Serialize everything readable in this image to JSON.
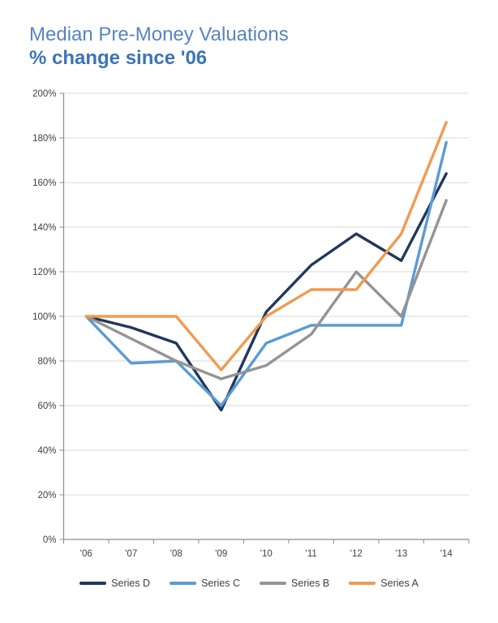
{
  "header": {
    "title": "Median Pre-Money Valuations",
    "subtitle": "% change since '06"
  },
  "chart_data": {
    "type": "line",
    "title": "Median Pre-Money Valuations",
    "subtitle": "% change since '06",
    "categories": [
      "'06",
      "'07",
      "'08",
      "'09",
      "'10",
      "'11",
      "'12",
      "'13",
      "'14"
    ],
    "series": [
      {
        "name": "Series D",
        "color": "#20385c",
        "values": [
          100,
          95,
          88,
          58,
          102,
          123,
          137,
          125,
          164
        ]
      },
      {
        "name": "Series C",
        "color": "#5b9bd5",
        "values": [
          100,
          79,
          80,
          60,
          88,
          96,
          96,
          96,
          178
        ]
      },
      {
        "name": "Series B",
        "color": "#949494",
        "values": [
          100,
          90,
          80,
          72,
          78,
          92,
          120,
          100,
          152
        ]
      },
      {
        "name": "Series A",
        "color": "#f09b51",
        "values": [
          100,
          100,
          100,
          76,
          100,
          112,
          112,
          137,
          187
        ]
      }
    ],
    "ylim": [
      0,
      200
    ],
    "ytick_step": 20,
    "y_tick_labels": [
      "0%",
      "20%",
      "40%",
      "60%",
      "80%",
      "100%",
      "120%",
      "140%",
      "160%",
      "180%",
      "200%"
    ],
    "xlabel": "",
    "ylabel": "",
    "grid": true,
    "legend_position": "bottom"
  },
  "style_colors": {
    "gridline": "#d9d9d9",
    "axis": "#8c8c8c",
    "tick_label": "#3f3f3f"
  }
}
